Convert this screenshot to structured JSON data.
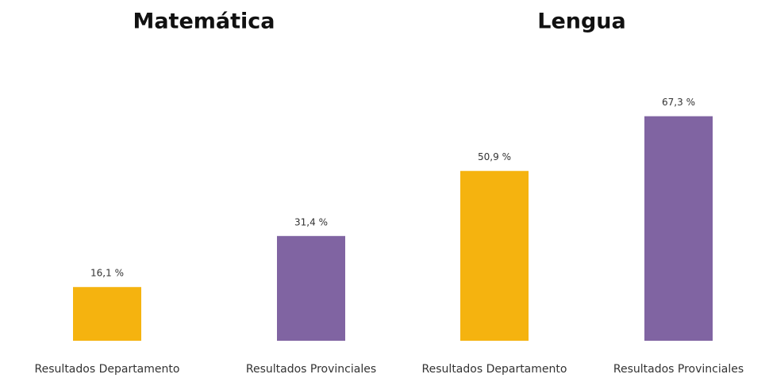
{
  "chart_data": [
    {
      "type": "bar",
      "title": "Matemática",
      "categories": [
        "Resultados Departamento",
        "Resultados Provinciales"
      ],
      "values": [
        16.1,
        31.4
      ],
      "value_labels": [
        "16,1 %",
        "31,4 %"
      ],
      "colors": [
        "#f5b30f",
        "#8064a2"
      ]
    },
    {
      "type": "bar",
      "title": "Lengua",
      "categories": [
        "Resultados Departamento",
        "Resultados Provinciales"
      ],
      "values": [
        50.9,
        67.3
      ],
      "value_labels": [
        "50,9 %",
        "67,3 %"
      ],
      "colors": [
        "#f5b30f",
        "#8064a2"
      ]
    }
  ]
}
